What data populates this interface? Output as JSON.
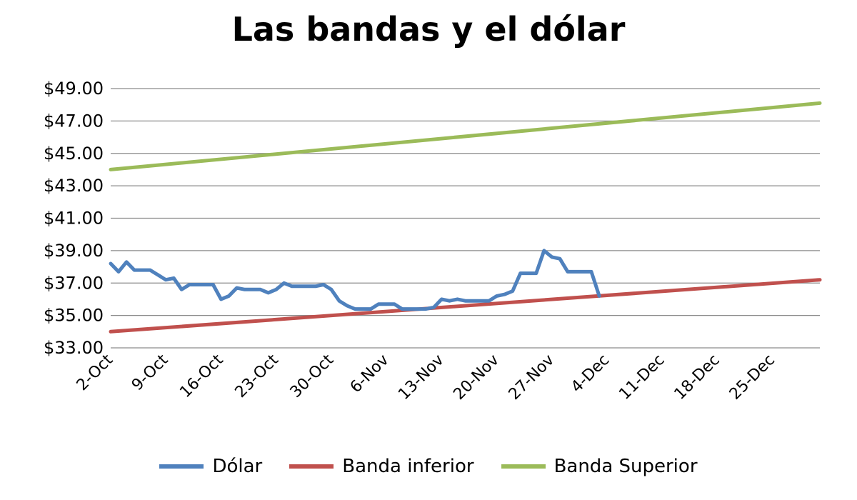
{
  "chart_data": {
    "type": "line",
    "title": "Las bandas y el dólar",
    "xlabel": "",
    "ylabel": "",
    "x_start": "2-Oct",
    "x_end": "31-Dec",
    "ylim": [
      33,
      49
    ],
    "y_ticks": [
      "$33.00",
      "$35.00",
      "$37.00",
      "$39.00",
      "$41.00",
      "$43.00",
      "$45.00",
      "$47.00",
      "$49.00"
    ],
    "x_ticks": [
      {
        "x": "2-Oct",
        "label": "2-Oct"
      },
      {
        "x": "9-Oct",
        "label": "9-Oct"
      },
      {
        "x": "16-Oct",
        "label": "16-Oct"
      },
      {
        "x": "23-Oct",
        "label": "23-Oct"
      },
      {
        "x": "30-Oct",
        "label": "30-Oct"
      },
      {
        "x": "6-Nov",
        "label": "6-Nov"
      },
      {
        "x": "13-Nov",
        "label": "13-Nov"
      },
      {
        "x": "20-Nov",
        "label": "20-Nov"
      },
      {
        "x": "27-Nov",
        "label": "27-Nov"
      },
      {
        "x": "4-Dec",
        "label": "4-Dec"
      },
      {
        "x": "11-Dec",
        "label": "11-Dec"
      },
      {
        "x": "18-Dec",
        "label": "18-Dec"
      },
      {
        "x": "25-Dec",
        "label": "25-Dec"
      }
    ],
    "grid": true,
    "legend_position": "bottom",
    "series": [
      {
        "name": "Dólar",
        "color": "#4F81BD",
        "points": [
          [
            "2-Oct",
            38.2
          ],
          [
            "3-Oct",
            37.7
          ],
          [
            "4-Oct",
            38.3
          ],
          [
            "5-Oct",
            37.8
          ],
          [
            "6-Oct",
            37.8
          ],
          [
            "7-Oct",
            37.8
          ],
          [
            "8-Oct",
            37.5
          ],
          [
            "9-Oct",
            37.2
          ],
          [
            "10-Oct",
            37.3
          ],
          [
            "11-Oct",
            36.6
          ],
          [
            "12-Oct",
            36.9
          ],
          [
            "13-Oct",
            36.9
          ],
          [
            "14-Oct",
            36.9
          ],
          [
            "15-Oct",
            36.9
          ],
          [
            "16-Oct",
            36.0
          ],
          [
            "17-Oct",
            36.2
          ],
          [
            "18-Oct",
            36.7
          ],
          [
            "19-Oct",
            36.6
          ],
          [
            "20-Oct",
            36.6
          ],
          [
            "21-Oct",
            36.6
          ],
          [
            "22-Oct",
            36.4
          ],
          [
            "23-Oct",
            36.6
          ],
          [
            "24-Oct",
            37.0
          ],
          [
            "25-Oct",
            36.8
          ],
          [
            "26-Oct",
            36.8
          ],
          [
            "27-Oct",
            36.8
          ],
          [
            "28-Oct",
            36.8
          ],
          [
            "29-Oct",
            36.9
          ],
          [
            "30-Oct",
            36.6
          ],
          [
            "31-Oct",
            35.9
          ],
          [
            "1-Nov",
            35.6
          ],
          [
            "2-Nov",
            35.4
          ],
          [
            "3-Nov",
            35.4
          ],
          [
            "4-Nov",
            35.4
          ],
          [
            "5-Nov",
            35.7
          ],
          [
            "6-Nov",
            35.7
          ],
          [
            "7-Nov",
            35.7
          ],
          [
            "8-Nov",
            35.4
          ],
          [
            "9-Nov",
            35.4
          ],
          [
            "10-Nov",
            35.4
          ],
          [
            "11-Nov",
            35.4
          ],
          [
            "12-Nov",
            35.5
          ],
          [
            "13-Nov",
            36.0
          ],
          [
            "14-Nov",
            35.9
          ],
          [
            "15-Nov",
            36.0
          ],
          [
            "16-Nov",
            35.9
          ],
          [
            "17-Nov",
            35.9
          ],
          [
            "18-Nov",
            35.9
          ],
          [
            "19-Nov",
            35.9
          ],
          [
            "20-Nov",
            36.2
          ],
          [
            "21-Nov",
            36.3
          ],
          [
            "22-Nov",
            36.5
          ],
          [
            "23-Nov",
            37.6
          ],
          [
            "24-Nov",
            37.6
          ],
          [
            "25-Nov",
            37.6
          ],
          [
            "26-Nov",
            39.0
          ],
          [
            "27-Nov",
            38.6
          ],
          [
            "28-Nov",
            38.5
          ],
          [
            "29-Nov",
            37.7
          ],
          [
            "30-Nov",
            37.7
          ],
          [
            "1-Dec",
            37.7
          ],
          [
            "2-Dec",
            37.7
          ],
          [
            "3-Dec",
            36.2
          ]
        ]
      },
      {
        "name": "Banda inferior",
        "color": "#C0504D",
        "points": [
          [
            "2-Oct",
            34.0
          ],
          [
            "31-Dec",
            37.2
          ]
        ]
      },
      {
        "name": "Banda Superior",
        "color": "#9BBB59",
        "points": [
          [
            "2-Oct",
            44.0
          ],
          [
            "31-Dec",
            48.1
          ]
        ]
      }
    ]
  }
}
